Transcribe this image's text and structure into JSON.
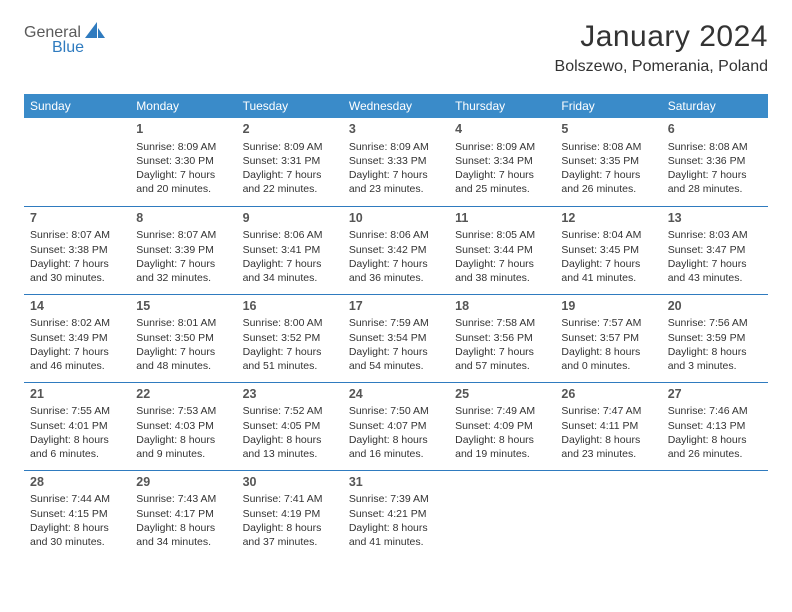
{
  "logo": {
    "text1": "General",
    "text2": "Blue"
  },
  "title": "January 2024",
  "location": "Bolszewo, Pomerania, Poland",
  "header_bg": "#3a8bc9",
  "accent": "#2f7bbf",
  "dayNames": [
    "Sunday",
    "Monday",
    "Tuesday",
    "Wednesday",
    "Thursday",
    "Friday",
    "Saturday"
  ],
  "weeks": [
    [
      null,
      {
        "n": "1",
        "sr": "8:09 AM",
        "ss": "3:30 PM",
        "dl": "7 hours and 20 minutes."
      },
      {
        "n": "2",
        "sr": "8:09 AM",
        "ss": "3:31 PM",
        "dl": "7 hours and 22 minutes."
      },
      {
        "n": "3",
        "sr": "8:09 AM",
        "ss": "3:33 PM",
        "dl": "7 hours and 23 minutes."
      },
      {
        "n": "4",
        "sr": "8:09 AM",
        "ss": "3:34 PM",
        "dl": "7 hours and 25 minutes."
      },
      {
        "n": "5",
        "sr": "8:08 AM",
        "ss": "3:35 PM",
        "dl": "7 hours and 26 minutes."
      },
      {
        "n": "6",
        "sr": "8:08 AM",
        "ss": "3:36 PM",
        "dl": "7 hours and 28 minutes."
      }
    ],
    [
      {
        "n": "7",
        "sr": "8:07 AM",
        "ss": "3:38 PM",
        "dl": "7 hours and 30 minutes."
      },
      {
        "n": "8",
        "sr": "8:07 AM",
        "ss": "3:39 PM",
        "dl": "7 hours and 32 minutes."
      },
      {
        "n": "9",
        "sr": "8:06 AM",
        "ss": "3:41 PM",
        "dl": "7 hours and 34 minutes."
      },
      {
        "n": "10",
        "sr": "8:06 AM",
        "ss": "3:42 PM",
        "dl": "7 hours and 36 minutes."
      },
      {
        "n": "11",
        "sr": "8:05 AM",
        "ss": "3:44 PM",
        "dl": "7 hours and 38 minutes."
      },
      {
        "n": "12",
        "sr": "8:04 AM",
        "ss": "3:45 PM",
        "dl": "7 hours and 41 minutes."
      },
      {
        "n": "13",
        "sr": "8:03 AM",
        "ss": "3:47 PM",
        "dl": "7 hours and 43 minutes."
      }
    ],
    [
      {
        "n": "14",
        "sr": "8:02 AM",
        "ss": "3:49 PM",
        "dl": "7 hours and 46 minutes."
      },
      {
        "n": "15",
        "sr": "8:01 AM",
        "ss": "3:50 PM",
        "dl": "7 hours and 48 minutes."
      },
      {
        "n": "16",
        "sr": "8:00 AM",
        "ss": "3:52 PM",
        "dl": "7 hours and 51 minutes."
      },
      {
        "n": "17",
        "sr": "7:59 AM",
        "ss": "3:54 PM",
        "dl": "7 hours and 54 minutes."
      },
      {
        "n": "18",
        "sr": "7:58 AM",
        "ss": "3:56 PM",
        "dl": "7 hours and 57 minutes."
      },
      {
        "n": "19",
        "sr": "7:57 AM",
        "ss": "3:57 PM",
        "dl": "8 hours and 0 minutes."
      },
      {
        "n": "20",
        "sr": "7:56 AM",
        "ss": "3:59 PM",
        "dl": "8 hours and 3 minutes."
      }
    ],
    [
      {
        "n": "21",
        "sr": "7:55 AM",
        "ss": "4:01 PM",
        "dl": "8 hours and 6 minutes."
      },
      {
        "n": "22",
        "sr": "7:53 AM",
        "ss": "4:03 PM",
        "dl": "8 hours and 9 minutes."
      },
      {
        "n": "23",
        "sr": "7:52 AM",
        "ss": "4:05 PM",
        "dl": "8 hours and 13 minutes."
      },
      {
        "n": "24",
        "sr": "7:50 AM",
        "ss": "4:07 PM",
        "dl": "8 hours and 16 minutes."
      },
      {
        "n": "25",
        "sr": "7:49 AM",
        "ss": "4:09 PM",
        "dl": "8 hours and 19 minutes."
      },
      {
        "n": "26",
        "sr": "7:47 AM",
        "ss": "4:11 PM",
        "dl": "8 hours and 23 minutes."
      },
      {
        "n": "27",
        "sr": "7:46 AM",
        "ss": "4:13 PM",
        "dl": "8 hours and 26 minutes."
      }
    ],
    [
      {
        "n": "28",
        "sr": "7:44 AM",
        "ss": "4:15 PM",
        "dl": "8 hours and 30 minutes."
      },
      {
        "n": "29",
        "sr": "7:43 AM",
        "ss": "4:17 PM",
        "dl": "8 hours and 34 minutes."
      },
      {
        "n": "30",
        "sr": "7:41 AM",
        "ss": "4:19 PM",
        "dl": "8 hours and 37 minutes."
      },
      {
        "n": "31",
        "sr": "7:39 AM",
        "ss": "4:21 PM",
        "dl": "8 hours and 41 minutes."
      },
      null,
      null,
      null
    ]
  ]
}
